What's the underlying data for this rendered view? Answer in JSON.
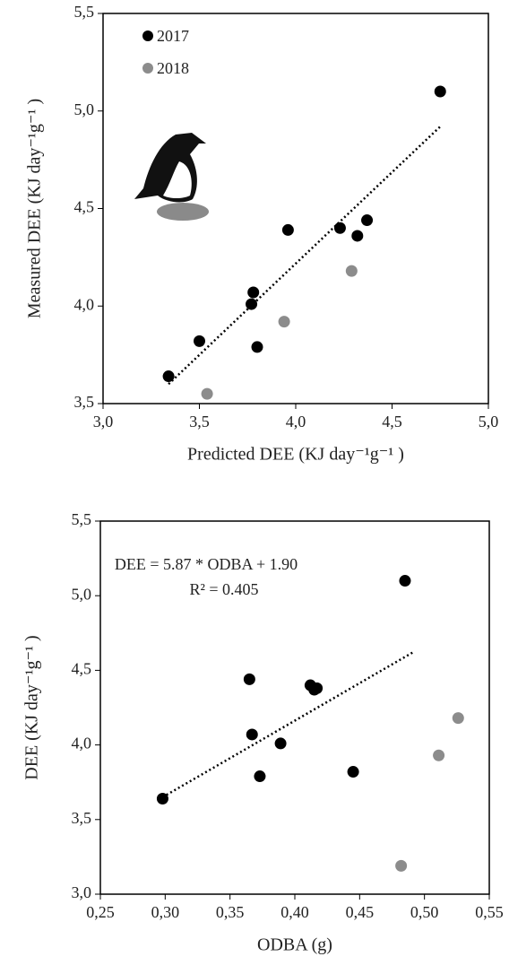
{
  "chart_data": [
    {
      "type": "scatter",
      "xlabel": "Predicted DEE (KJ day⁻¹g⁻¹ )",
      "ylabel": "Measured DEE (KJ day⁻¹g⁻¹ )",
      "xlim": [
        3.0,
        5.0
      ],
      "ylim": [
        3.5,
        5.5
      ],
      "xticks": [
        {
          "value": 3.0,
          "label": "3,0"
        },
        {
          "value": 3.5,
          "label": "3,5"
        },
        {
          "value": 4.0,
          "label": "4,0"
        },
        {
          "value": 4.5,
          "label": "4,5"
        },
        {
          "value": 5.0,
          "label": "5,0"
        }
      ],
      "yticks": [
        {
          "value": 3.5,
          "label": "3,5"
        },
        {
          "value": 4.0,
          "label": "4,0"
        },
        {
          "value": 4.5,
          "label": "4,5"
        },
        {
          "value": 5.0,
          "label": "5,0"
        },
        {
          "value": 5.5,
          "label": "5,5"
        }
      ],
      "legend": "upper left",
      "series": [
        {
          "name": "2017",
          "color": "#000000",
          "x": [
            3.34,
            3.5,
            3.77,
            3.78,
            3.8,
            3.96,
            4.23,
            4.32,
            4.37,
            4.75
          ],
          "values": [
            3.64,
            3.82,
            4.01,
            4.07,
            3.79,
            4.39,
            4.4,
            4.36,
            4.44,
            5.1
          ]
        },
        {
          "name": "2018",
          "color": "#8c8c8c",
          "x": [
            3.54,
            3.94,
            4.29
          ],
          "values": [
            3.55,
            3.92,
            4.18
          ]
        }
      ],
      "trendline": {
        "x": [
          3.34,
          4.75
        ],
        "y": [
          3.6,
          4.92
        ]
      }
    },
    {
      "type": "scatter",
      "xlabel": "ODBA (g)",
      "ylabel": "DEE (KJ day⁻¹g⁻¹ )",
      "annotations": [
        "DEE = 5.87 * ODBA + 1.90",
        "R² = 0.405"
      ],
      "xlim": [
        0.25,
        0.55
      ],
      "ylim": [
        3.0,
        5.5
      ],
      "xticks": [
        {
          "value": 0.25,
          "label": "0,25"
        },
        {
          "value": 0.3,
          "label": "0,30"
        },
        {
          "value": 0.35,
          "label": "0,35"
        },
        {
          "value": 0.4,
          "label": "0,40"
        },
        {
          "value": 0.45,
          "label": "0,45"
        },
        {
          "value": 0.5,
          "label": "0,50"
        },
        {
          "value": 0.55,
          "label": "0,55"
        }
      ],
      "yticks": [
        {
          "value": 3.0,
          "label": "3,0"
        },
        {
          "value": 3.5,
          "label": "3,5"
        },
        {
          "value": 4.0,
          "label": "4,0"
        },
        {
          "value": 4.5,
          "label": "4,5"
        },
        {
          "value": 5.0,
          "label": "5,0"
        },
        {
          "value": 5.5,
          "label": "5,5"
        }
      ],
      "series": [
        {
          "name": "2017",
          "color": "#000000",
          "x": [
            0.298,
            0.365,
            0.367,
            0.373,
            0.389,
            0.412,
            0.415,
            0.417,
            0.445,
            0.485
          ],
          "values": [
            3.64,
            4.44,
            4.07,
            3.79,
            4.01,
            4.4,
            4.37,
            4.38,
            3.82,
            5.1
          ]
        },
        {
          "name": "2018",
          "color": "#8c8c8c",
          "x": [
            0.482,
            0.511,
            0.526
          ],
          "values": [
            3.19,
            3.93,
            4.18
          ]
        }
      ],
      "trendline": {
        "x": [
          0.298,
          0.491
        ],
        "y": [
          3.65,
          4.62
        ]
      }
    }
  ]
}
